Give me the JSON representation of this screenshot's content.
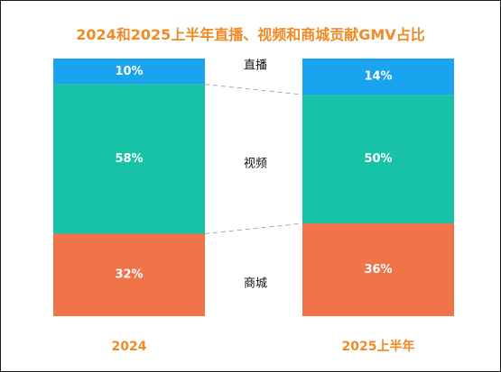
{
  "chart_data": {
    "type": "bar",
    "stacked": true,
    "normalized": true,
    "title": "2024和2025上半年直播、视频和商城贡献GMV占比",
    "categories": [
      "2024",
      "2025上半年"
    ],
    "series": [
      {
        "name": "直播",
        "values": [
          10,
          14
        ],
        "labels": [
          "10%",
          "14%"
        ],
        "color": "#1aa3ee"
      },
      {
        "name": "视频",
        "values": [
          58,
          50
        ],
        "labels": [
          "58%",
          "50%"
        ],
        "color": "#18c2a6"
      },
      {
        "name": "商城",
        "values": [
          32,
          36
        ],
        "labels": [
          "32%",
          "36%"
        ],
        "color": "#f0734a"
      }
    ],
    "ylim": [
      0,
      100
    ],
    "grid": false,
    "legend": "center-between-bars",
    "connector_color": "#aaaaaa"
  }
}
